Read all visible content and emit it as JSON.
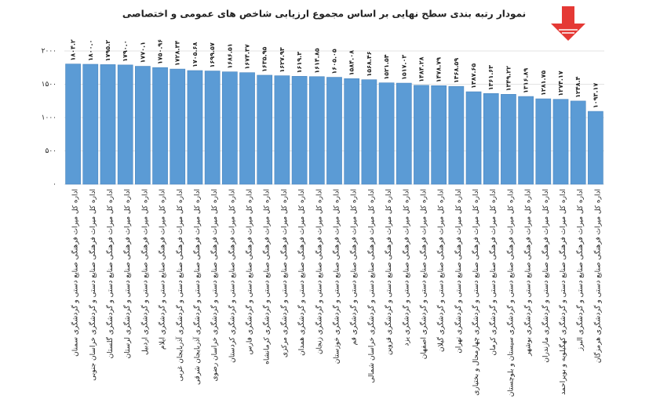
{
  "chart_data": {
    "type": "bar",
    "title": "نمودار رتبه بندی سطح نهایی بر اساس مجموع ارزیابی شاخص های عمومی و اختصاصی",
    "categories": [
      "اداره کل میراث فرهنگی صنایع دستی و گردشگری سمنان",
      "اداره کل میراث فرهنگی صنایع دستی و گردشگری خراسان جنوبی",
      "اداره کل میراث فرهنگی صنایع دستی و گردشگری گلستان",
      "اداره کل میراث فرهنگی صنایع دستی و گردشگری لرستان",
      "اداره کل میراث فرهنگی صنایع دستی و گردشگری اردبیل",
      "اداره کل میراث فرهنگی صنایع دستی و گردشگری ایلام",
      "اداره کل میراث فرهنگی صنایع دستی و گردشگری آذربایجان غربی",
      "اداره کل میراث فرهنگی صنایع دستی و گردشگری آذربایجان شرقی",
      "اداره کل میراث فرهنگی صنایع دستی و گردشگری خراسان رضوی",
      "اداره کل میراث فرهنگی صنایع دستی و گردشگری کردستان",
      "اداره کل میراث فرهنگی صنایع دستی و گردشگری فارس",
      "اداره کل میراث فرهنگی صنایع دستی و گردشگری کرمانشاه",
      "اداره کل میراث فرهنگی صنایع دستی و گردشگری مرکزی",
      "اداره کل میراث فرهنگی صنایع دستی و گردشگری همدان",
      "اداره کل میراث فرهنگی صنایع دستی و گردشگری زنجان",
      "اداره کل میراث فرهنگی صنایع دستی و گردشگری خوزستان",
      "اداره کل میراث فرهنگی صنایع دستی و گردشگری قم",
      "اداره کل میراث فرهنگی صنایع دستی و گردشگری خراسان شمالی",
      "اداره کل میراث فرهنگی صنایع دستی و گردشگری قزوین",
      "اداره کل میراث فرهنگی صنایع دستی و گردشگری یزد",
      "اداره کل میراث فرهنگی صنایع دستی و گردشگری اصفهان",
      "اداره کل میراث فرهنگی صنایع دستی و گردشگری گیلان",
      "اداره کل میراث فرهنگی صنایع دستی و گردشگری تهران",
      "اداره کل میراث فرهنگی صنایع دستی و گردشگری چهارمحال و بختیاری",
      "اداره کل میراث فرهنگی صنایع دستی و گردشگری کرمان",
      "اداره کل میراث فرهنگی صنایع دستی و گردشگری سیستان و بلوچستان",
      "اداره کل میراث فرهنگی صنایع دستی و گردشگری بوشهر",
      "اداره کل میراث فرهنگی صنایع دستی و گردشگری مازندران",
      "اداره کل میراث فرهنگی صنایع دستی و گردشگری کهگیلویه و بویراحمد",
      "اداره کل میراث فرهنگی صنایع دستی و گردشگری البرز",
      "اداره کل میراث فرهنگی صنایع دستی و گردشگری هرمزگان"
    ],
    "values": [
      1804.2,
      1800.0,
      1795.2,
      1790.0,
      1770.1,
      1750.96,
      1728.34,
      1705.68,
      1699.57,
      1686.51,
      1674.37,
      1635.95,
      1627.93,
      1619.3,
      1614.85,
      1605.05,
      1584.08,
      1568.46,
      1521.54,
      1517.03,
      1484.28,
      1478.79,
      1468.59,
      1387.65,
      1361.63,
      1349.22,
      1316.89,
      1281.75,
      1274.17,
      1248.4,
      1093.17
    ],
    "value_labels": [
      "۱۸۰۴.۲",
      "۱۸۰۰.۰",
      "۱۷۹۵.۲",
      "۱۷۹۰.۰",
      "۱۷۷۰.۱",
      "۱۷۵۰.۹۶",
      "۱۷۲۸.۳۴",
      "۱۷۰۵.۶۸",
      "۱۶۹۹.۵۷",
      "۱۶۸۶.۵۱",
      "۱۶۷۴.۳۷",
      "۱۶۳۵.۹۵",
      "۱۶۲۷.۹۳",
      "۱۶۱۹.۳",
      "۱۶۱۴.۸۵",
      "۱۶۰۵.۰۵",
      "۱۵۸۴.۰۸",
      "۱۵۶۸.۴۶",
      "۱۵۲۱.۵۴",
      "۱۵۱۷.۰۳",
      "۱۴۸۴.۲۸",
      "۱۴۷۸.۷۹",
      "۱۴۶۸.۵۹",
      "۱۳۸۷.۶۵",
      "۱۳۶۱.۶۳",
      "۱۳۴۹.۲۲",
      "۱۳۱۶.۸۹",
      "۱۲۸۱.۷۵",
      "۱۲۷۴.۱۷",
      "۱۲۴۸.۴",
      "۱۰۹۳.۱۷"
    ],
    "color": "#5b9bd5",
    "ylim": [
      0,
      2000
    ],
    "yticks": [
      {
        "value": 0,
        "label": "۰"
      },
      {
        "value": 500,
        "label": "۵۰۰"
      },
      {
        "value": 1000,
        "label": "۱۰۰۰"
      },
      {
        "value": 1500,
        "label": "۱۵۰۰"
      },
      {
        "value": 2000,
        "label": "۲۰۰۰"
      }
    ],
    "grid": true
  }
}
